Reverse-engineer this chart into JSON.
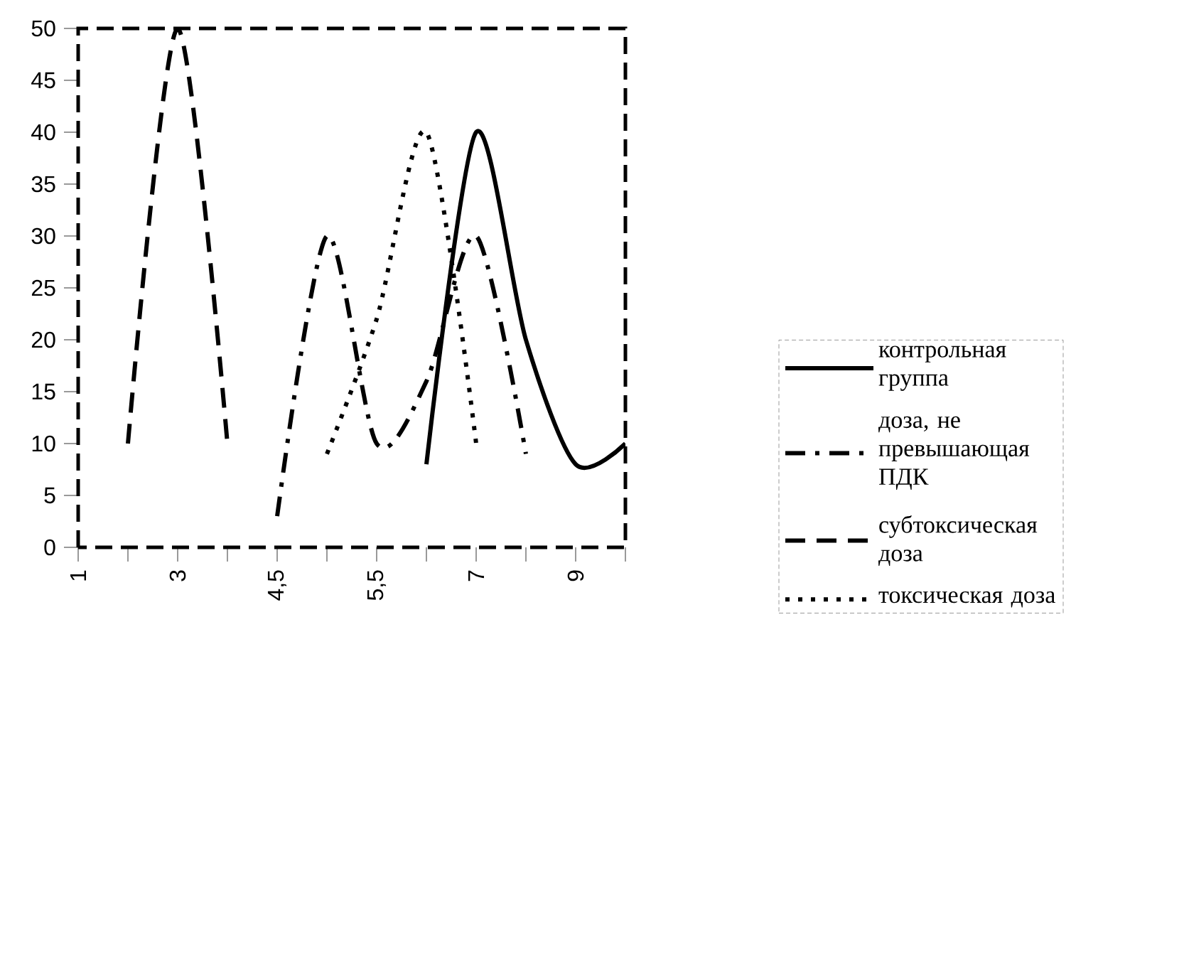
{
  "chart_data": {
    "type": "line",
    "categories": [
      "1",
      null,
      "3",
      null,
      "4,5",
      null,
      "5,5",
      null,
      "7",
      null,
      "9",
      null
    ],
    "series": [
      {
        "name": "контрольная группа",
        "color": "#000000",
        "line_style": "solid",
        "values": [
          null,
          null,
          null,
          null,
          null,
          null,
          null,
          8,
          40,
          20,
          8,
          10
        ]
      },
      {
        "name": "доза, не превышающая ПДК",
        "color": "#000000",
        "line_style": "dashdot",
        "values": [
          null,
          null,
          null,
          null,
          3,
          30,
          10,
          16,
          30,
          9,
          null,
          null
        ]
      },
      {
        "name": "субтоксическая доза",
        "color": "#000000",
        "line_style": "dashed",
        "values": [
          null,
          10,
          50,
          10,
          null,
          null,
          null,
          null,
          null,
          null,
          null,
          null
        ]
      },
      {
        "name": "токсическая доза",
        "color": "#000000",
        "line_style": "dotted",
        "values": [
          null,
          null,
          null,
          null,
          null,
          9,
          22,
          40,
          10,
          null,
          null,
          null
        ]
      }
    ],
    "ylim": [
      0,
      50
    ],
    "yticks": [
      0,
      5,
      10,
      15,
      20,
      25,
      30,
      35,
      40,
      45,
      50
    ],
    "grid": false,
    "legend": "right",
    "marker": "none"
  }
}
